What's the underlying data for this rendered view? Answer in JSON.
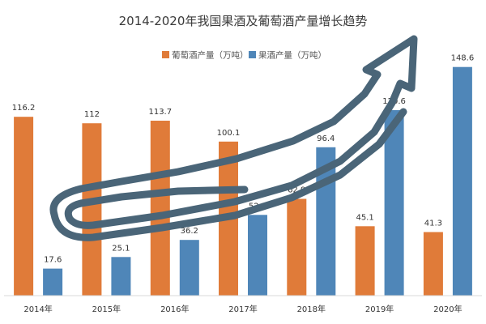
{
  "chart_data": {
    "type": "bar",
    "title": "2014-2020年我国果酒及葡萄酒产量增长趋势",
    "categories": [
      "2014年",
      "2015年",
      "2016年",
      "2017年",
      "2018年",
      "2019年",
      "2020年"
    ],
    "series": [
      {
        "name": "葡萄酒产量（万吨）",
        "color": "#E07B39",
        "values": [
          116.2,
          112,
          113.7,
          100.1,
          62.9,
          45.1,
          41.3
        ]
      },
      {
        "name": "果酒产量（万吨）",
        "color": "#4F86B8",
        "values": [
          17.6,
          25.1,
          36.2,
          52.5,
          96.4,
          120.6,
          148.6
        ]
      }
    ],
    "value_labels": {
      "wine": [
        "116.2",
        "112",
        "113.7",
        "100.1",
        "62.9",
        "45.1",
        "41.3"
      ],
      "fruit": [
        "17.6",
        "25.1",
        "36.2",
        "52.5",
        "96.4",
        "120.6",
        "148.6"
      ]
    },
    "ylim": [
      0,
      150
    ],
    "grid": false,
    "legend_position": "top",
    "decoration": {
      "name": "upward-trend-arrow",
      "color": "#4A6578"
    }
  }
}
